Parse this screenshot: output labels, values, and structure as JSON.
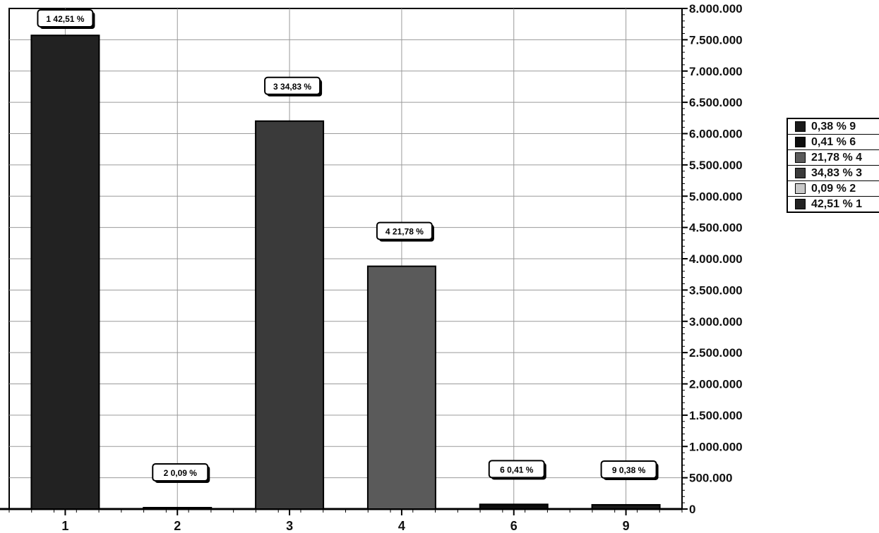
{
  "chart_data": {
    "type": "bar",
    "categories": [
      "1",
      "2",
      "3",
      "4",
      "6",
      "9"
    ],
    "values": [
      7570000,
      16000,
      6200000,
      3880000,
      75000,
      68000
    ],
    "data_labels": [
      "1 42,51 %",
      "2 0,09 %",
      "3 34,83 %",
      "4 21,78 %",
      "6 0,41 %",
      "9 0,38 %"
    ],
    "ylim": [
      0,
      8000000
    ],
    "y_ticks": [
      0,
      500000,
      1000000,
      1500000,
      2000000,
      2500000,
      3000000,
      3500000,
      4000000,
      4500000,
      5000000,
      5500000,
      6000000,
      6500000,
      7000000,
      7500000,
      8000000
    ],
    "y_tick_labels": [
      "0",
      "500.000",
      "1.000.000",
      "1.500.000",
      "2.000.000",
      "2.500.000",
      "3.000.000",
      "3.500.000",
      "4.000.000",
      "4.500.000",
      "5.000.000",
      "5.500.000",
      "6.000.000",
      "6.500.000",
      "7.000.000",
      "7.500.000",
      "8.000.000"
    ],
    "y_axis_side": "right",
    "grid": true,
    "legend_position": "right",
    "legend": [
      {
        "label": "0,38 % 9",
        "color": "#1a1a1a"
      },
      {
        "label": "0,41 % 6",
        "color": "#0d0d0d"
      },
      {
        "label": "21,78 % 4",
        "color": "#5a5a5a"
      },
      {
        "label": "34,83 % 3",
        "color": "#3a3a3a"
      },
      {
        "label": "0,09 % 2",
        "color": "#c8c8c8"
      },
      {
        "label": "42,51 % 1",
        "color": "#222222"
      }
    ],
    "bar_colors": [
      "#222222",
      "#c8c8c8",
      "#3a3a3a",
      "#5a5a5a",
      "#0d0d0d",
      "#1a1a1a"
    ],
    "title": "",
    "xlabel": "",
    "ylabel": ""
  }
}
